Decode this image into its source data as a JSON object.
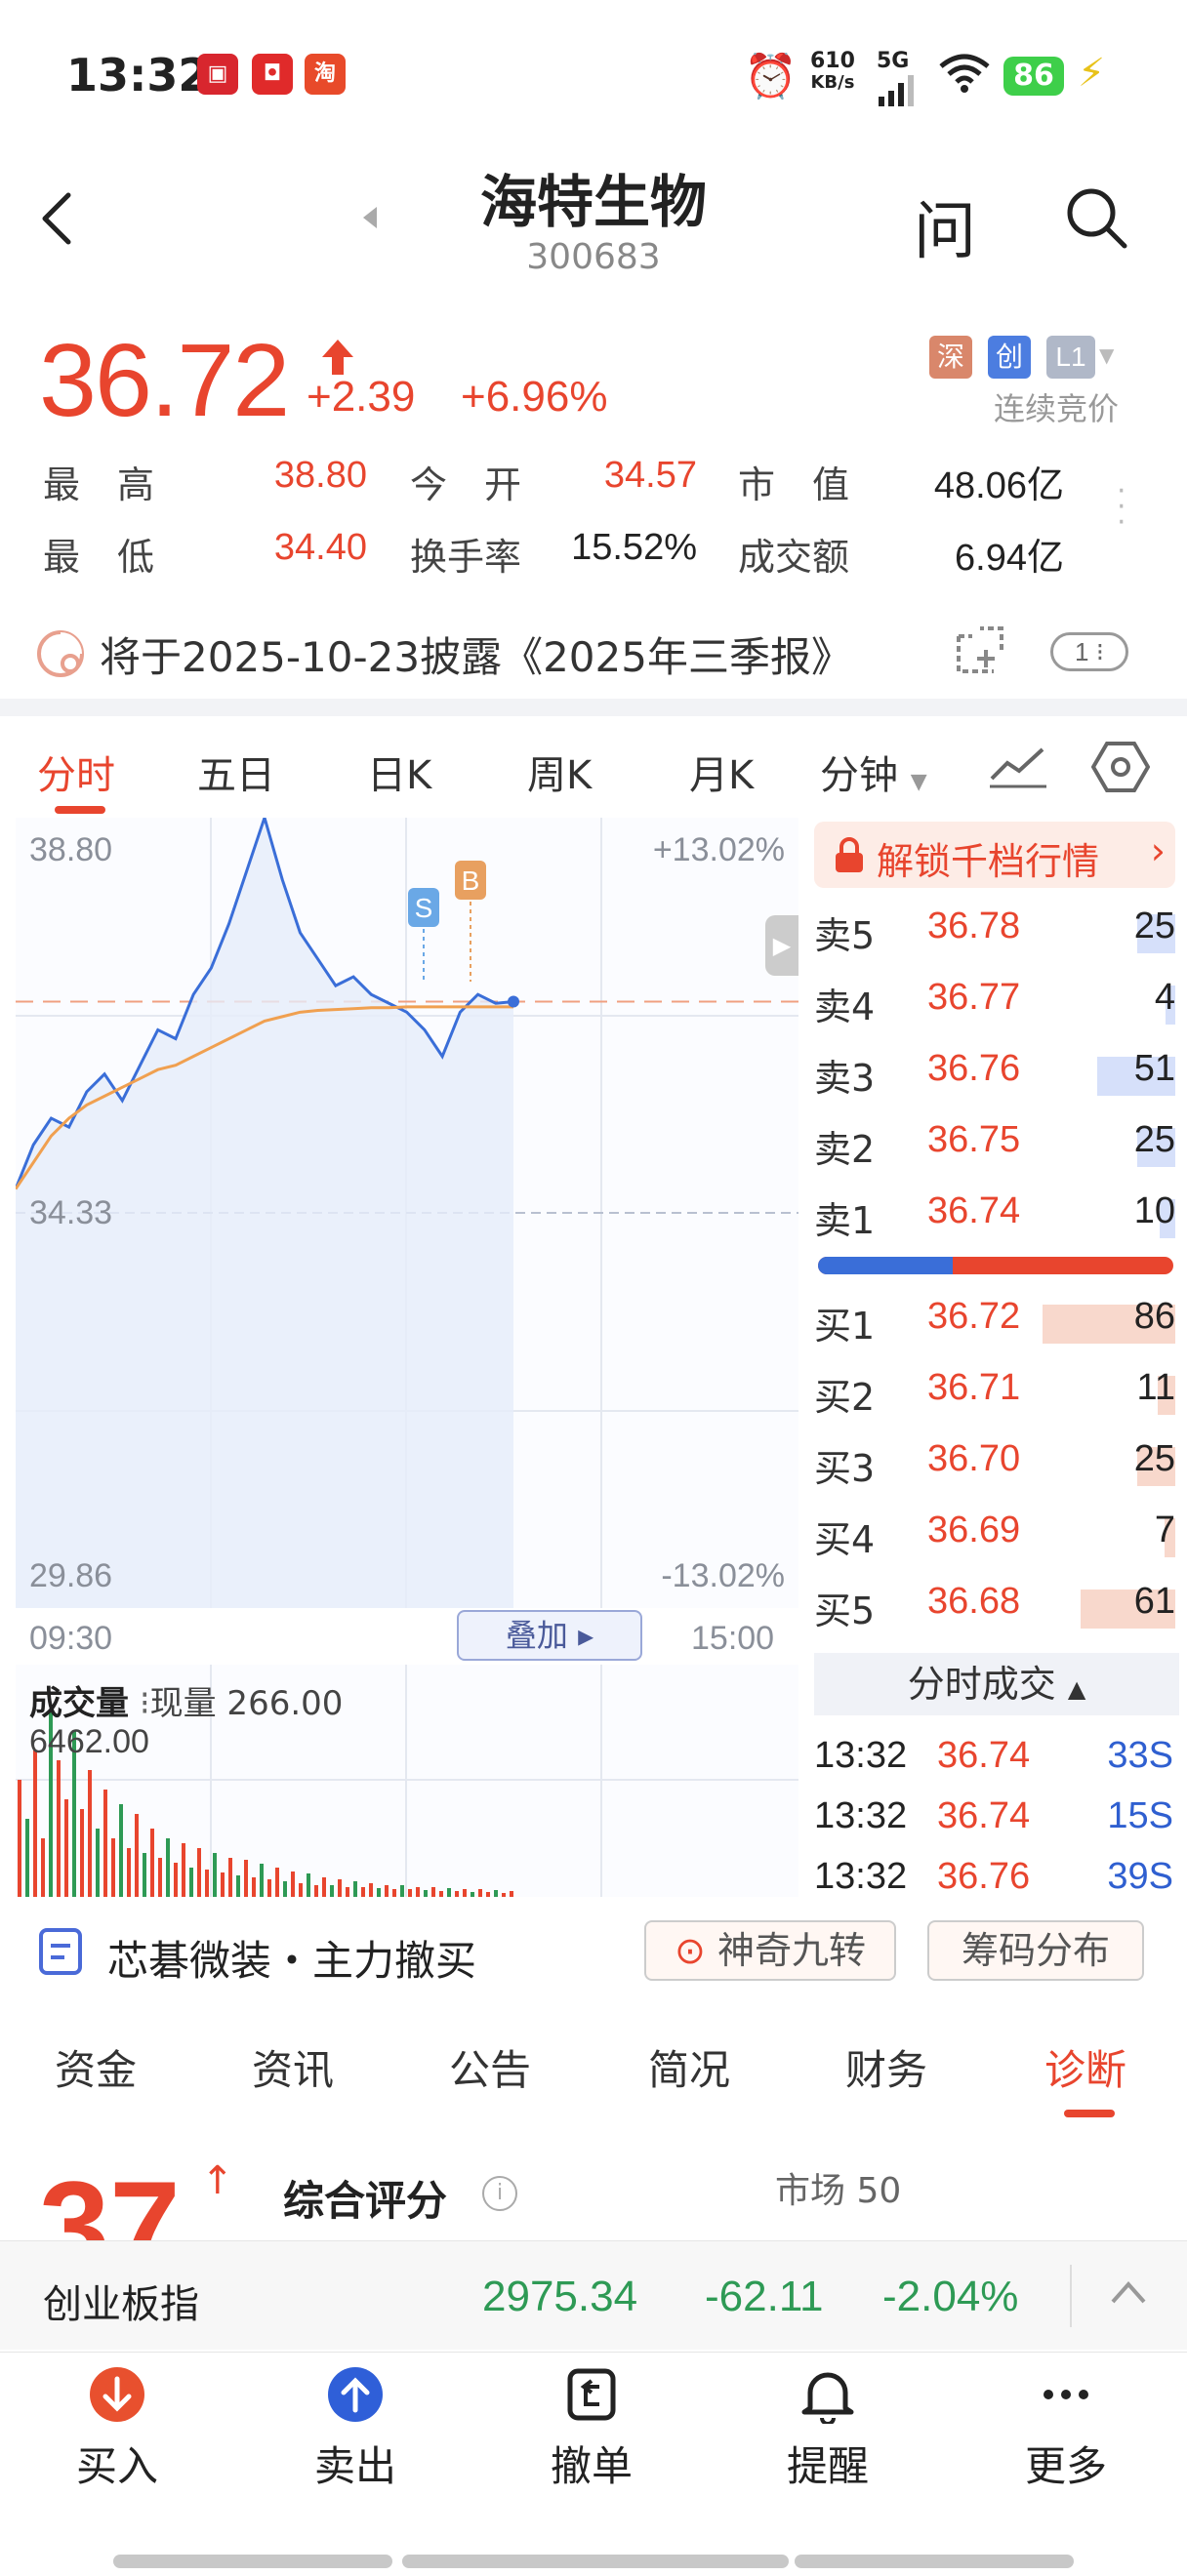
{
  "status_bar": {
    "time": "13:32",
    "network_speed": "610",
    "network_speed_unit": "KB/s",
    "signal": "5G",
    "battery": "86"
  },
  "header": {
    "stock_name": "海特生物",
    "stock_code": "300683",
    "ask_label": "问"
  },
  "quote": {
    "price": "36.72",
    "change": "+2.39",
    "change_pct": "+6.96%",
    "tags": [
      "深",
      "创",
      "L1"
    ],
    "auction_label": "连续竞价",
    "stats": [
      {
        "label": "最　高",
        "value": "38.80",
        "color": "red"
      },
      {
        "label": "今　开",
        "value": "34.57",
        "color": "red"
      },
      {
        "label": "市　值",
        "value": "48.06亿",
        "color": "black"
      },
      {
        "label": "最　低",
        "value": "34.40",
        "color": "red"
      },
      {
        "label": "换手率",
        "value": "15.52%",
        "color": "black"
      },
      {
        "label": "成交额",
        "value": "6.94亿",
        "color": "black"
      }
    ]
  },
  "notice": {
    "text": "将于2025-10-23披露《2025年三季报》",
    "badge": "1"
  },
  "chart_tabs": [
    "分时",
    "五日",
    "日K",
    "周K",
    "月K",
    "分钟"
  ],
  "chart": {
    "y_high": "38.80",
    "y_mid": "34.33",
    "y_low": "29.86",
    "pct_high": "+13.02%",
    "pct_low": "-13.02%",
    "x_start": "09:30",
    "x_end": "15:00",
    "overlay_btn": "叠加",
    "marker_s": "S",
    "marker_b": "B",
    "volume_title": "成交量",
    "volume_now": "现量 266.00",
    "volume_max": "6462.00"
  },
  "chart_data": {
    "type": "line",
    "title": "",
    "ylim": [
      29.86,
      38.8
    ],
    "reference": 34.33,
    "x_range": [
      "09:30",
      "15:00"
    ],
    "series": [
      {
        "values": [
          34.6,
          35.1,
          35.4,
          35.3,
          35.7,
          35.9,
          35.6,
          36.0,
          36.4,
          36.3,
          36.8,
          37.1,
          37.6,
          38.2,
          38.8,
          38.1,
          37.5,
          37.2,
          36.9,
          37.0,
          36.8,
          36.7,
          36.6,
          36.4,
          36.1,
          36.6,
          36.8,
          36.7,
          36.72
        ]
      },
      {
        "values": [
          34.6,
          34.9,
          35.2,
          35.4,
          35.55,
          35.65,
          35.75,
          35.85,
          35.95,
          36.0,
          36.1,
          36.2,
          36.3,
          36.4,
          36.5,
          36.55,
          36.6,
          36.62,
          36.63,
          36.64,
          36.65,
          36.65,
          36.66,
          36.66,
          36.66,
          36.66,
          36.66,
          36.66,
          36.66
        ]
      }
    ]
  },
  "order_book": {
    "unlock_label": "解锁千档行情",
    "asks": [
      {
        "label": "卖5",
        "price": "36.78",
        "vol": "25",
        "pct": 0.29
      },
      {
        "label": "卖4",
        "price": "36.77",
        "vol": "4",
        "pct": 0.05
      },
      {
        "label": "卖3",
        "price": "36.76",
        "vol": "51",
        "pct": 0.59
      },
      {
        "label": "卖2",
        "price": "36.75",
        "vol": "25",
        "pct": 0.29
      },
      {
        "label": "卖1",
        "price": "36.74",
        "vol": "10",
        "pct": 0.12
      }
    ],
    "bids": [
      {
        "label": "买1",
        "price": "36.72",
        "vol": "86",
        "pct": 1.0
      },
      {
        "label": "买2",
        "price": "36.71",
        "vol": "11",
        "pct": 0.13
      },
      {
        "label": "买3",
        "price": "36.70",
        "vol": "25",
        "pct": 0.29
      },
      {
        "label": "买4",
        "price": "36.69",
        "vol": "7",
        "pct": 0.08
      },
      {
        "label": "买5",
        "price": "36.68",
        "vol": "61",
        "pct": 0.71
      }
    ],
    "buy_sell_ratio": 0.38,
    "trades_title": "分时成交",
    "trades": [
      {
        "time": "13:32",
        "price": "36.74",
        "vol": "33S"
      },
      {
        "time": "13:32",
        "price": "36.74",
        "vol": "15S"
      },
      {
        "time": "13:32",
        "price": "36.76",
        "vol": "39S"
      }
    ]
  },
  "concept_bar": {
    "text": "芯碁微装・主力撤买",
    "btn1": "神奇九转",
    "btn2": "筹码分布"
  },
  "info_tabs": [
    "资金",
    "资讯",
    "公告",
    "简况",
    "财务",
    "诊断"
  ],
  "score": {
    "value": "37",
    "label": "综合评分",
    "market": "市场 50"
  },
  "index_bar": {
    "name": "创业板指",
    "value": "2975.34",
    "change": "-62.11",
    "change_pct": "-2.04%"
  },
  "nav": [
    {
      "label": "买入",
      "icon": "buy-icon"
    },
    {
      "label": "卖出",
      "icon": "sell-icon"
    },
    {
      "label": "撤单",
      "icon": "cancel-order-icon"
    },
    {
      "label": "提醒",
      "icon": "bell-icon"
    },
    {
      "label": "更多",
      "icon": "more-icon"
    }
  ]
}
